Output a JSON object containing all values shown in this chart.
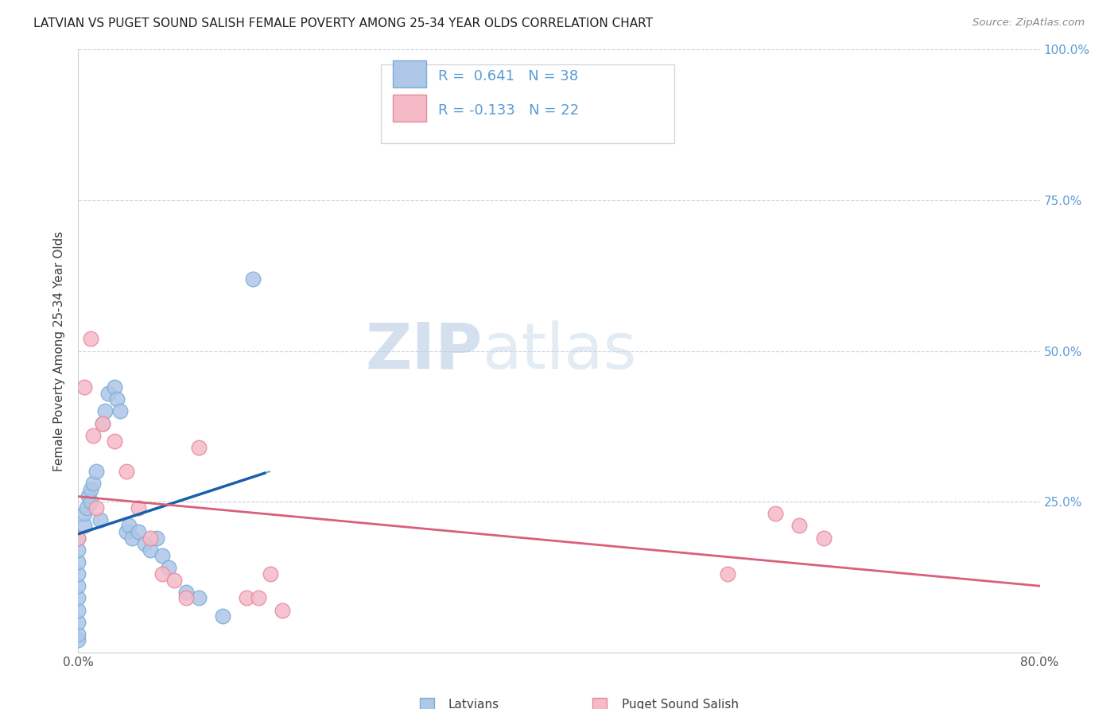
{
  "title": "LATVIAN VS PUGET SOUND SALISH FEMALE POVERTY AMONG 25-34 YEAR OLDS CORRELATION CHART",
  "source": "Source: ZipAtlas.com",
  "ylabel": "Female Poverty Among 25-34 Year Olds",
  "xlim": [
    0.0,
    0.8
  ],
  "ylim": [
    0.0,
    1.0
  ],
  "latvian_color": "#aec6e8",
  "latvian_edge": "#7bafd4",
  "salish_color": "#f4bac8",
  "salish_edge": "#e8899a",
  "trend_latvian_color": "#1a5faa",
  "trend_salish_color": "#d9607a",
  "legend_latvian_label": "Latvians",
  "legend_salish_label": "Puget Sound Salish",
  "R_latvian": 0.641,
  "N_latvian": 38,
  "R_salish": -0.133,
  "N_salish": 22,
  "watermark_zip": "ZIP",
  "watermark_atlas": "atlas",
  "right_tick_color": "#5b9bd5",
  "latvian_x": [
    0.0,
    0.0,
    0.0,
    0.0,
    0.0,
    0.0,
    0.0,
    0.0,
    0.0,
    0.0,
    0.005,
    0.005,
    0.007,
    0.008,
    0.01,
    0.01,
    0.012,
    0.015,
    0.018,
    0.02,
    0.022,
    0.025,
    0.03,
    0.032,
    0.035,
    0.04,
    0.042,
    0.045,
    0.05,
    0.055,
    0.06,
    0.065,
    0.07,
    0.075,
    0.09,
    0.1,
    0.12,
    0.145
  ],
  "latvian_y": [
    0.02,
    0.03,
    0.05,
    0.07,
    0.09,
    0.11,
    0.13,
    0.15,
    0.17,
    0.19,
    0.21,
    0.23,
    0.24,
    0.26,
    0.25,
    0.27,
    0.28,
    0.3,
    0.22,
    0.38,
    0.4,
    0.43,
    0.44,
    0.42,
    0.4,
    0.2,
    0.21,
    0.19,
    0.2,
    0.18,
    0.17,
    0.19,
    0.16,
    0.14,
    0.1,
    0.09,
    0.06,
    0.62
  ],
  "salish_x": [
    0.0,
    0.005,
    0.01,
    0.012,
    0.015,
    0.02,
    0.03,
    0.04,
    0.05,
    0.06,
    0.07,
    0.08,
    0.09,
    0.1,
    0.14,
    0.15,
    0.16,
    0.17,
    0.54,
    0.58,
    0.6,
    0.62
  ],
  "salish_y": [
    0.19,
    0.44,
    0.52,
    0.36,
    0.24,
    0.38,
    0.35,
    0.3,
    0.24,
    0.19,
    0.13,
    0.12,
    0.09,
    0.34,
    0.09,
    0.09,
    0.13,
    0.07,
    0.13,
    0.23,
    0.21,
    0.19
  ]
}
